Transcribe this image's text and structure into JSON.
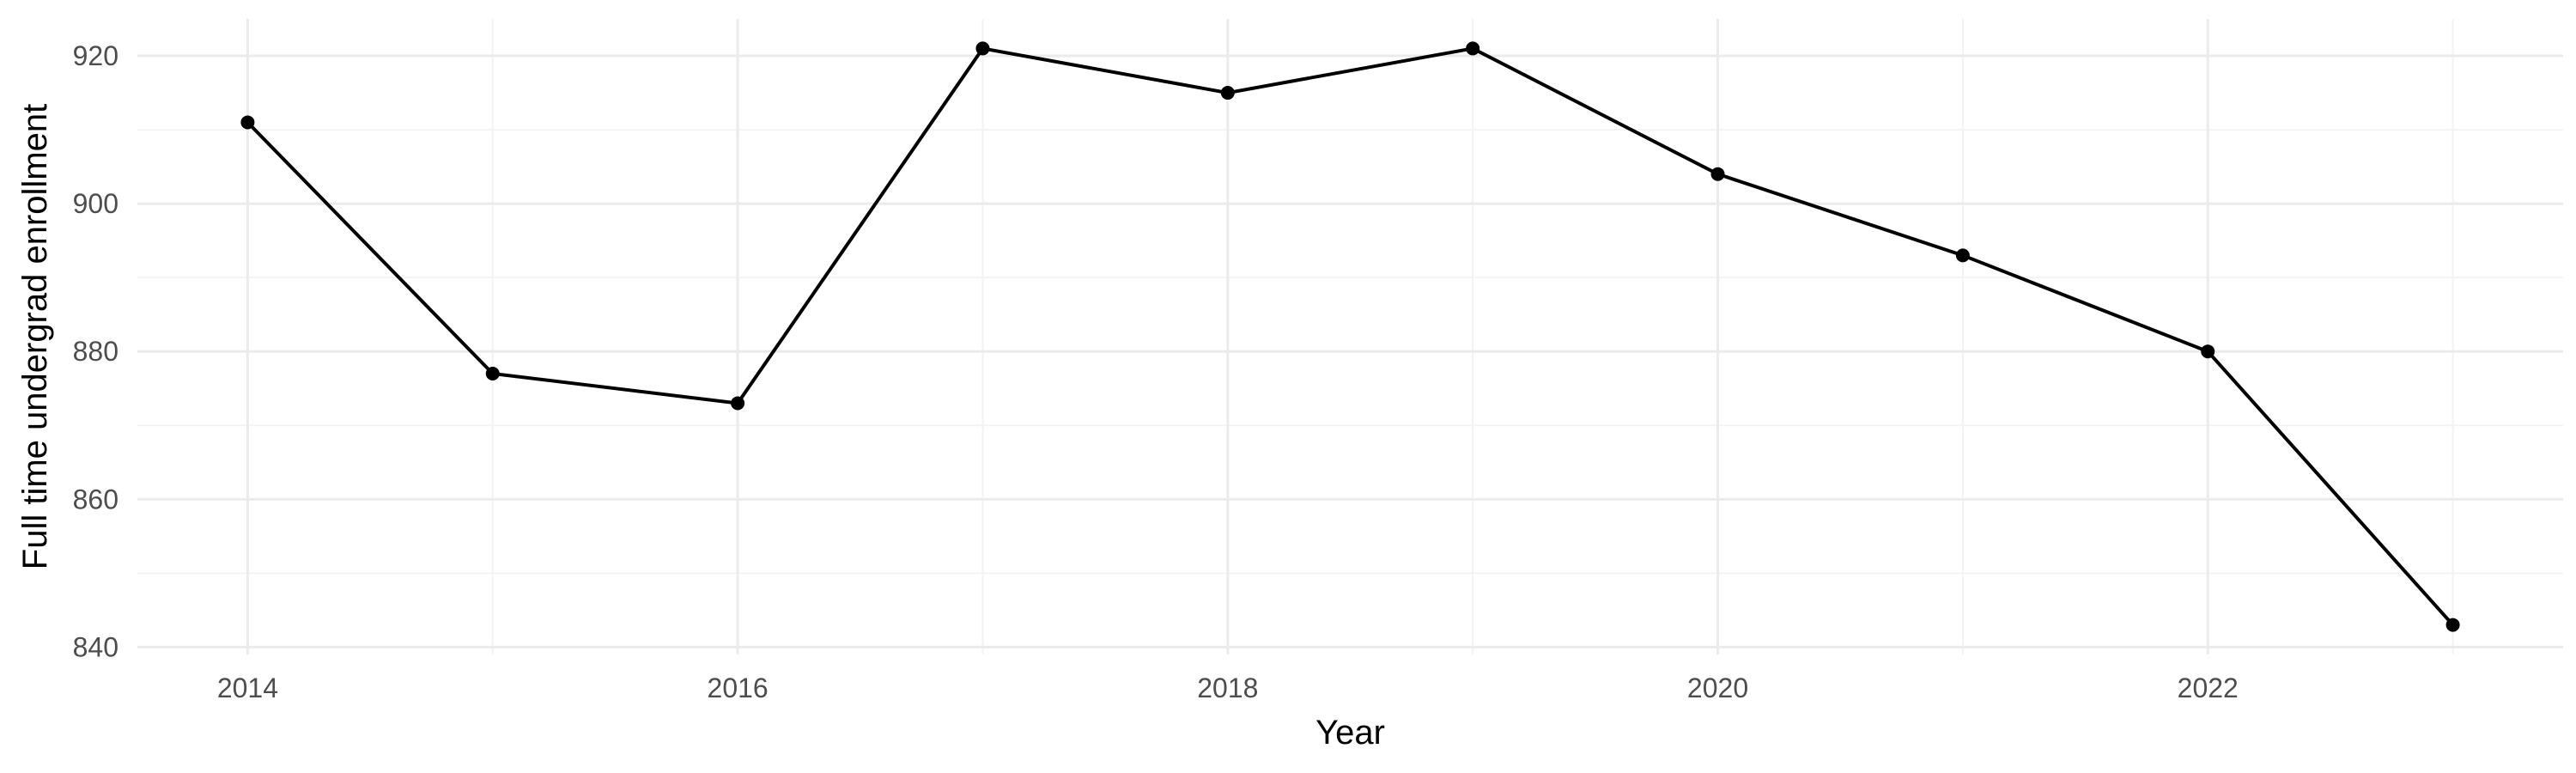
{
  "chart_data": {
    "type": "line",
    "title": "",
    "xlabel": "Year",
    "ylabel": "Full time undergrad enrollment",
    "x": [
      2014,
      2015,
      2016,
      2017,
      2018,
      2019,
      2020,
      2021,
      2022,
      2023
    ],
    "series": [
      {
        "values": [
          911,
          877,
          873,
          921,
          915,
          921,
          904,
          893,
          880,
          843
        ]
      }
    ],
    "xlim": [
      2013.55,
      2023.45
    ],
    "ylim": [
      839,
      925
    ],
    "x_ticks": [
      2014,
      2016,
      2018,
      2020,
      2022
    ],
    "y_ticks": [
      840,
      860,
      880,
      900,
      920
    ],
    "grid": true,
    "legend": "none",
    "colors": {
      "line": "#000000",
      "point": "#000000",
      "grid_major": "#ebebeb",
      "grid_minor": "#f3f3f3",
      "tick_text": "#4d4d4d"
    }
  }
}
